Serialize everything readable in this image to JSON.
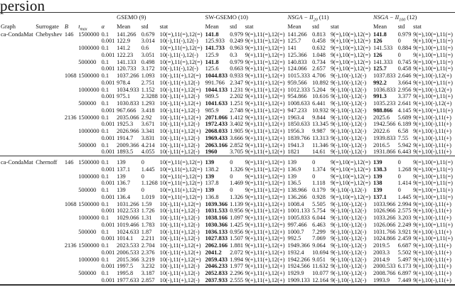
{
  "title": "persion",
  "header": {
    "algorithms": [
      {
        "name": "GSEMO",
        "sub": "",
        "num": "(9)",
        "italic": false
      },
      {
        "name": "SW-GSEMO",
        "sub": "",
        "num": "(10)",
        "italic": false
      },
      {
        "name": "NSGA − II",
        "sub": "20",
        "num": "(11)",
        "italic": true
      },
      {
        "name": "NSGA − II",
        "sub": "100",
        "num": "(12)",
        "italic": true
      }
    ],
    "columns": [
      "Graph",
      "Surrogate",
      "B",
      "t",
      "α"
    ],
    "tmax_sub": "max",
    "sub_columns": [
      "Mean",
      "std",
      "stat"
    ]
  },
  "rows": [
    {
      "c": [
        "ca-CondaMat",
        "Chebyshev",
        "146",
        "1500000",
        "0.1",
        "141.266",
        "0.679",
        "10(=),11(=),12(=)",
        "141.8",
        "0.979",
        "9(=),11(=),12(=)",
        "141.266",
        "0.813",
        "9(=),10(=),12(=)",
        "141.8",
        "0.979",
        "9(=),10(=),11(=)"
      ],
      "b": [
        1,
        3
      ]
    },
    {
      "c": [
        "",
        "",
        "",
        "",
        "0.001",
        "122.9",
        "3.014",
        "10(-),11(-),12(-)",
        "125.933",
        "0.249",
        "9(+),11(=),12(=)",
        "125.7",
        "0.458",
        "9(+),10(=),12(=)",
        "126",
        "0",
        "9(+),10(=),11(=)"
      ],
      "b": [
        3
      ]
    },
    {
      "c": [
        "",
        "",
        "",
        "1000000",
        "0.1",
        "141.2",
        "0.6",
        "10(=),11(=),12(=)",
        "141.733",
        "0.963",
        "9(=),11(=),12(=)",
        "141",
        "0.632",
        "9(=),10(=),12(=)",
        "141.533",
        "0.884",
        "9(=),10(=),11(=)"
      ],
      "b": [
        1
      ]
    },
    {
      "c": [
        "",
        "",
        "",
        "",
        "0.001",
        "122.23",
        "3.051",
        "10(-),11(-),12(-)",
        "125.9",
        "0.3",
        "9(+),11(=),12(=)",
        "125.366",
        "1.048",
        "9(+),10(=),12(=)",
        "126",
        "0",
        "9(+),10(=),11(=)"
      ],
      "b": [
        3
      ]
    },
    {
      "c": [
        "",
        "",
        "",
        "500000",
        "0.1",
        "141.133",
        "0.498",
        "10(=),11(=),12(=)",
        "141.8",
        "0.979",
        "9(=),11(=),12(=)",
        "140.833",
        "0.734",
        "9(=),10(=),12(=)",
        "141.333",
        "0.745",
        "9(=),10(=),11(=)"
      ],
      "b": [
        1
      ]
    },
    {
      "c": [
        "",
        "",
        "",
        "",
        "0.001",
        "120.733",
        "3.172",
        "10(-),11(-),12(-)",
        "125.6",
        "0.663",
        "9(+),11(=),12(=)",
        "124.066",
        "2.657",
        "9(+),10(=),12(=)",
        "125.7",
        "0.458",
        "9(+),10(=),11(=)"
      ],
      "b": [
        3
      ]
    },
    {
      "c": [
        "",
        "",
        "1068",
        "1500000",
        "0.1",
        "1037.266",
        "1.093",
        "10(-),11(+),12(=)",
        "1044.833",
        "0.933",
        "9(+),11(+),12(+)",
        "1015.333",
        "4.706",
        "9(-),10(-),12(-)",
        "1037.833",
        "2.646",
        "9(=),10(-),12(+)"
      ],
      "b": [
        1
      ]
    },
    {
      "c": [
        "",
        "",
        "",
        "",
        "0.001",
        "978.4",
        "2.751",
        "10(-),11(+),12(-)",
        "991.766",
        "2.347",
        "9(+),11(+),12(=)",
        "959.566",
        "10.892",
        "9(-),10(-),12(-)",
        "992.2",
        "3.664",
        "9(+),10(=),11(+)"
      ],
      "b": [
        3
      ]
    },
    {
      "c": [
        "",
        "",
        "",
        "1000000",
        "0.1",
        "1034.933",
        "1.152",
        "10(-),11(+),12(=)",
        "1044.133",
        "1.231",
        "9(+),11(+),12(+)",
        "1012.333",
        "5.204",
        "9(-),10(-),12(-)",
        "1036.833",
        "2.956",
        "9(=),10(-),12(+)"
      ],
      "b": [
        1
      ]
    },
    {
      "c": [
        "",
        "",
        "",
        "",
        "0.001",
        "975.1",
        "2.3288",
        "10(-),11(+),12(-)",
        "989.5",
        "2.202",
        "9(+),11(+),12(=)",
        "954.866",
        "10.616",
        "9(-),10(-),12(-)",
        "991.3",
        "3.377",
        "9(+),10(=),11(+)"
      ],
      "b": [
        3
      ]
    },
    {
      "c": [
        "",
        "",
        "",
        "500000",
        "0.1",
        "1030.833",
        "1.293",
        "10(-),11(+),12(+)",
        "1041.633",
        "1.251",
        "9(+),11(+),12(+)",
        "1008.633",
        "6.441",
        "9(-),10(-),12(-)",
        "1035.233",
        "2.641",
        "9(+),10(-),12(+)"
      ],
      "b": [
        1
      ]
    },
    {
      "c": [
        "",
        "",
        "",
        "",
        "0.001",
        "967.666",
        "3.418",
        "10(-),11(+),12(-)",
        "985.9",
        "2.748",
        "9(+),11(+),12(=)",
        "947.233",
        "10.932",
        "9(-),10(-),12(-)",
        "988.866",
        "4.145",
        "9(+),10(=),11(+)"
      ],
      "b": [
        3
      ]
    },
    {
      "c": [
        "",
        "",
        "2136",
        "1500000",
        "0.1",
        "2035.066",
        "2.92",
        "10(-),11(+),12(+)",
        "2071.066",
        "1.412",
        "9(+),11(+),12(+)",
        "1963.4",
        "9.844",
        "9(-),10(-),12(-)",
        "2025.6",
        "5.689",
        "9(+),10(-),11(+)"
      ],
      "b": [
        1
      ]
    },
    {
      "c": [
        "",
        "",
        "",
        "",
        "0.001",
        "1925.3",
        "3.671",
        "10(-),11(+),12(-)",
        "1972.433",
        "3.402",
        "9(+),11(+),12(+)",
        "1850.633",
        "13.345",
        "9(-),10(-),12(-)",
        "1942.566",
        "6.189",
        "9(+),10(-),11(+)"
      ],
      "b": [
        1
      ]
    },
    {
      "c": [
        "",
        "",
        "",
        "1000000",
        "0.1",
        "2026.966",
        "3.341",
        "10(-),11(+),12(+)",
        "2068.033",
        "1.905",
        "9(+),11(+),12(+)",
        "1956.3",
        "9.987",
        "9(-),10(-),12(-)",
        "2022.6",
        "6.58",
        "9(+),10(-),11(+)"
      ],
      "b": [
        1
      ]
    },
    {
      "c": [
        "",
        "",
        "",
        "",
        "0.001",
        "1914.7",
        "3.831",
        "10(-),11(+),12(-)",
        "1969.433",
        "3.666",
        "9(+),11(+),12(+)",
        "1839.766",
        "13.313",
        "9(-),10(-),12(-)",
        "1939.833",
        "7.55",
        "9(+),10(-),11(+)"
      ],
      "b": [
        1
      ]
    },
    {
      "c": [
        "",
        "",
        "",
        "500000",
        "0.1",
        "2009.366",
        "4.214",
        "10(-),11(+),12(-)",
        "2063.166",
        "2.852",
        "9(+),11(+),12(+)",
        "1941.3",
        "11.346",
        "9(-),10(-),12(-)",
        "2016.5",
        "5.942",
        "9(+),10(-),11(+)"
      ],
      "b": [
        1
      ]
    },
    {
      "c": [
        "",
        "",
        "",
        "",
        "0.001",
        "1893.5",
        "4.055",
        "10(-),11(+),12(-)",
        "1960",
        "3.705",
        "9(+),11(+),12(+)",
        "1821",
        "14.61",
        "9(-),10(-),12(-)",
        "1931.866",
        "6.443",
        "9(+),10(-),11(+)"
      ],
      "b": [
        1
      ]
    },
    {
      "c": [
        "ca-CondaMat",
        "Chernoff",
        "146",
        "1500000",
        "0.1",
        "139",
        "0",
        "10(=),11(=),12(=)",
        "139",
        "0",
        "9(=),11(=),12(=)",
        "139",
        "0",
        "9(=),10(=),12(=)",
        "139",
        "0",
        "9(=),10(=),11(=)"
      ],
      "b": [
        1,
        3
      ],
      "sep": true
    },
    {
      "c": [
        "",
        "",
        "",
        "",
        "0.001",
        "137.1",
        "1.445",
        "10(=),11(=),12(=)",
        "138.2",
        "1.326",
        "9(=),11(=),12(=)",
        "136.9",
        "1.374",
        "9(=),10(=),12(=)",
        "138.3",
        "1.268",
        "9(=),10(=),11(=)"
      ],
      "b": [
        3
      ]
    },
    {
      "c": [
        "",
        "",
        "",
        "1000000",
        "0.1",
        "139",
        "0",
        "10(=),11(=),12(=)",
        "139",
        "0",
        "9(=),11(=),12(=)",
        "139",
        "0",
        "9(=),10(=),12(=)",
        "139",
        "0",
        "9(=),10(=),11(=)"
      ],
      "b": [
        1,
        3
      ]
    },
    {
      "c": [
        "",
        "",
        "",
        "",
        "0.001",
        "136.7",
        "1.1268",
        "10(=),11(=),12(=)",
        "137.8",
        "1.469",
        "9(=),11(=),12(=)",
        "136.5",
        "1.118",
        "9(=),10(=),12(=)",
        "138",
        "1.414",
        "9(=),10(=),11(=)"
      ],
      "b": [
        3
      ]
    },
    {
      "c": [
        "",
        "",
        "",
        "500000",
        "0.1",
        "139",
        "0",
        "10(=),11(+),12(=)",
        "139",
        "0",
        "9(=),11(+),12(=)",
        "138.966",
        "0.179",
        "9(-),10(-),12(-)",
        "139",
        "0",
        "9(=),10(=),11(+)"
      ],
      "b": [
        1,
        3
      ]
    },
    {
      "c": [
        "",
        "",
        "",
        "",
        "0.001",
        "136.4",
        "1.019",
        "10(=),11(=),12(=)",
        "136.8",
        "1.326",
        "9(=),11(=),12(=)",
        "136.266",
        "0.928",
        "9(=),10(=),12(=)",
        "137.1",
        "1.445",
        "9(=),10(=),11(=)"
      ],
      "b": [
        3
      ]
    },
    {
      "c": [
        "",
        "",
        "1068",
        "1500000",
        "0.1",
        "1031.266",
        "1.59",
        "10(-),11(+),12(=)",
        "1039.366",
        "1.139",
        "9(+),11(+),12(+)",
        "1008.4",
        "5.505",
        "9(-),10(-),12(-)",
        "1033.966",
        "2.994",
        "9(=),10(-),11(+)"
      ],
      "b": [
        1
      ]
    },
    {
      "c": [
        "",
        "",
        "",
        "",
        "0.001",
        "1022.533",
        "1.726",
        "10(-),11(+),12(-)",
        "1031.533",
        "0.956",
        "9(+),11(+),12(+)",
        "1001.133",
        "5.754",
        "9(-),10(-),12(-)",
        "1026.966",
        "2.575",
        "9(+),10(-),11(+)"
      ],
      "b": [
        1
      ]
    },
    {
      "c": [
        "",
        "",
        "",
        "1000000",
        "0.1",
        "1029.066",
        "1.31",
        "10(-),11(+),12(-)",
        "1038.166",
        "1.097",
        "9(+),11(+),12(+)",
        "1005.833",
        "6.044",
        "9(-),10(-),12(-)",
        "1033.266",
        "3.203",
        "9(+),10(-),11(+)"
      ],
      "b": [
        1
      ]
    },
    {
      "c": [
        "",
        "",
        "",
        "",
        "0.001",
        "1019.466",
        "1.783",
        "10(-),11(+),12(-)",
        "1030.366",
        "1.425",
        "9(+),11(+),12(=)",
        "997.466",
        "6.463",
        "9(-),10(-),12(-)",
        "1026.066",
        "2.249",
        "9(+),10(=),11(+)"
      ],
      "b": [
        1
      ]
    },
    {
      "c": [
        "",
        "",
        "",
        "500000",
        "0.1",
        "1024.633",
        "1.87",
        "10(-),11(+),12(-)",
        "1036.133",
        "0.956",
        "9(+),11(+),12(+)",
        "1000.7",
        "7.299",
        "9(-),10(-),12(-)",
        "1031.766",
        "3.921",
        "9(+),10(-),11(+)"
      ],
      "b": [
        1
      ]
    },
    {
      "c": [
        "",
        "",
        "",
        "",
        "0.001",
        "1014.1",
        "2.211",
        "10(-),11(+),12(-)",
        "1027.833",
        "1.507",
        "9(+),11(+),12(=)",
        "992.5",
        "7.069",
        "9(-),10(-),12(-)",
        "1024.866",
        "2.459",
        "9(+),10(=),11(+)"
      ],
      "b": [
        1
      ]
    },
    {
      "c": [
        "",
        "",
        "2136",
        "1500000",
        "0.1",
        "2023.533",
        "2.704",
        "10(-),11(+),12(+)",
        "2062.166",
        "1.881",
        "9(+),11(+),12(+)",
        "1949.366",
        "9.064",
        "9(-),10(-),12(-)",
        "2019.5",
        "6.687",
        "9(+),10(-),11(+)"
      ],
      "b": [
        1
      ]
    },
    {
      "c": [
        "",
        "",
        "",
        "",
        "0.001",
        "2006.533",
        "2.376",
        "10(-),11(+),12(+)",
        "2041.2",
        "2.072",
        "9(+),11(+),12(+)",
        "1932.4",
        "10.694",
        "9(-),10(-),12(-)",
        "2003.3",
        "5.502",
        "9(+),10(-),11(+)"
      ],
      "b": [
        1
      ]
    },
    {
      "c": [
        "",
        "",
        "",
        "1000000",
        "0.1",
        "2015.366",
        "3.219",
        "10(-),11(+),12(=)",
        "2059.433",
        "1.994",
        "9(+),11(+),12(+)",
        "1942.266",
        "9.051",
        "9(-),10(-),12(-)",
        "2014.9",
        "5.497",
        "9(+),10(-),11(+)"
      ],
      "b": [
        1
      ]
    },
    {
      "c": [
        "",
        "",
        "",
        "",
        "0.001",
        "1997.5",
        "3.232",
        "10(-),11(+),12(-)",
        "2046.233",
        "1.977",
        "9(+),11(+),12(+)",
        "1924.566",
        "11.632",
        "9(-),10(-),12(-)",
        "2000.533",
        "6.173",
        "9(+),10(-),11(+)"
      ],
      "b": [
        1
      ]
    },
    {
      "c": [
        "",
        "",
        "",
        "500000",
        "0.1",
        "1995.8",
        "3.187",
        "10(-),11(+),12(-)",
        "2052.833",
        "2.296",
        "9(+),11(+),12(+)",
        "1929.9",
        "10.077",
        "9(-),10(-),12(-)",
        "2008.766",
        "6.897",
        "9(+),10(-),11(+)"
      ],
      "b": [
        1
      ]
    },
    {
      "c": [
        "",
        "",
        "",
        "",
        "0.001",
        "1977.633",
        "2.857",
        "10(-),11(+),12(-)",
        "2037.933",
        "2.555",
        "9(+),11(+),12(+)",
        "1909.133",
        "12.164",
        "9(-),10(-),12(-)",
        "1993.9",
        "7.449",
        "9(+),10(-),11(+)"
      ],
      "b": [
        1
      ]
    }
  ]
}
